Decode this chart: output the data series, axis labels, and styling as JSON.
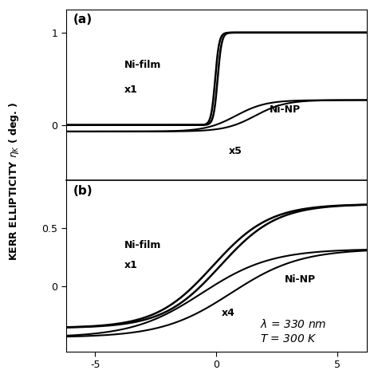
{
  "ylabel": "KERR ELLIPTICITY $\\eta_K$ ( deg. )",
  "xlim": [
    -6.2,
    6.2
  ],
  "panel_a": {
    "label": "(a)",
    "ylim": [
      -0.6,
      1.25
    ],
    "yticks": [
      0,
      1
    ],
    "yticklabels": [
      "0",
      "1"
    ],
    "ni_film_label": "Ni-film",
    "ni_film_x_label": "x1",
    "ni_np_label": "Ni-NP",
    "ni_np_x_label": "x5"
  },
  "panel_b": {
    "label": "(b)",
    "ylim": [
      -0.55,
      0.9
    ],
    "yticks": [
      0,
      0.5
    ],
    "yticklabels": [
      "0",
      "0.5"
    ],
    "ni_film_label": "Ni-film",
    "ni_film_x_label": "x1",
    "ni_np_label": "Ni-NP",
    "ni_np_x_label": "x4"
  },
  "xticks": [
    -5,
    0,
    5
  ],
  "xticklabels": [
    "-5",
    "0",
    "5"
  ],
  "line_color": "#000000",
  "bg_color": "#ffffff",
  "lw_film": 1.8,
  "lw_np": 1.5,
  "font_size_label": 9,
  "font_size_tick": 9,
  "font_size_annot": 9,
  "font_size_panel": 11
}
